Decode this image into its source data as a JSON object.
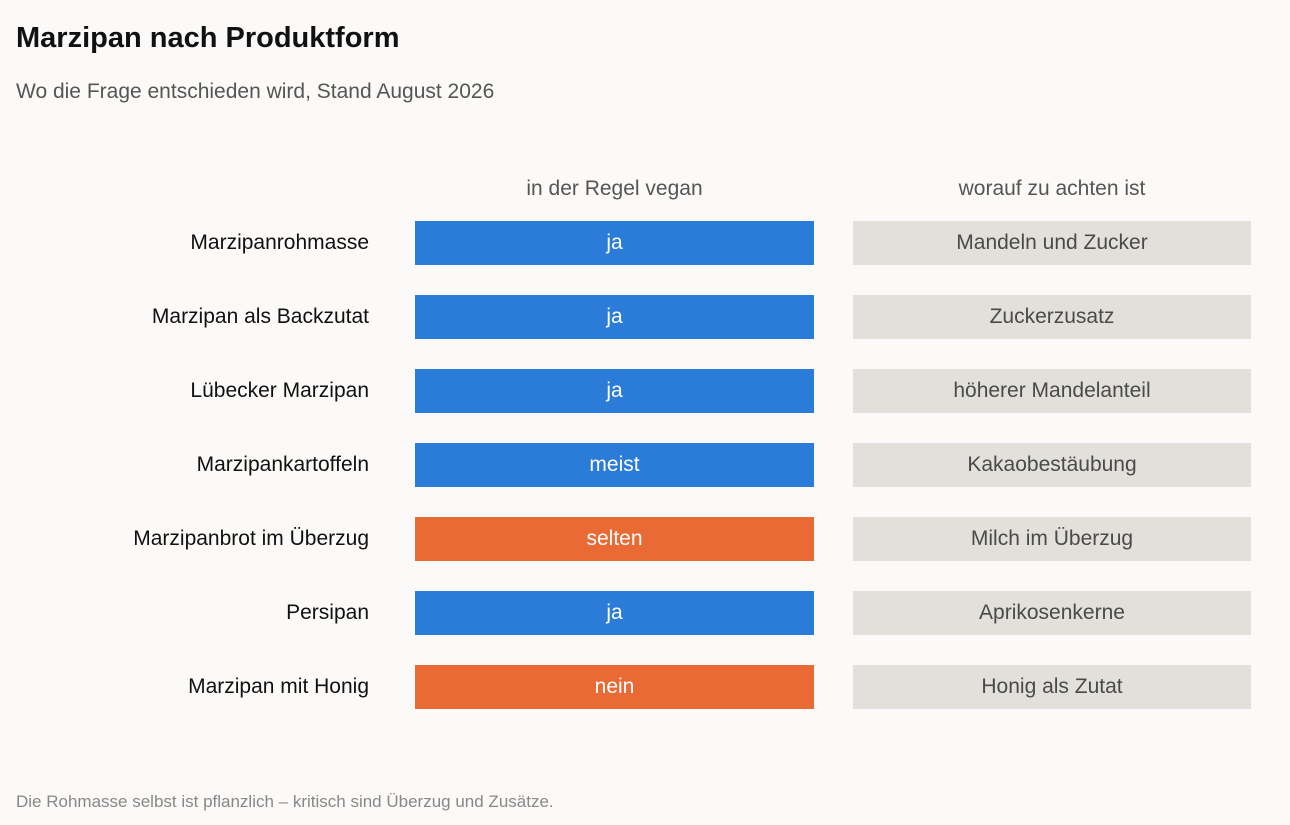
{
  "title": "Marzipan nach Produktform",
  "subtitle": "Wo die Frage entschieden wird, Stand August 2026",
  "footnote": "Die Rohmasse selbst ist pflanzlich – kritisch sind Überzug und Zusätze.",
  "colors": {
    "positive": "#2b7bd8",
    "negative": "#ea6a35",
    "note_background": "#e2e0da"
  },
  "chart_data": {
    "type": "table",
    "columns": [
      "in der Regel vegan",
      "worauf zu achten ist"
    ],
    "rows": [
      {
        "label": "Marzipanrohmasse",
        "status": "ja",
        "status_type": "positive",
        "note": "Mandeln und Zucker"
      },
      {
        "label": "Marzipan als Backzutat",
        "status": "ja",
        "status_type": "positive",
        "note": "Zuckerzusatz"
      },
      {
        "label": "Lübecker Marzipan",
        "status": "ja",
        "status_type": "positive",
        "note": "höherer Mandelanteil"
      },
      {
        "label": "Marzipankartoffeln",
        "status": "meist",
        "status_type": "positive",
        "note": "Kakaobestäubung"
      },
      {
        "label": "Marzipanbrot im Überzug",
        "status": "selten",
        "status_type": "negative",
        "note": "Milch im Überzug"
      },
      {
        "label": "Persipan",
        "status": "ja",
        "status_type": "positive",
        "note": "Aprikosenkerne"
      },
      {
        "label": "Marzipan mit Honig",
        "status": "nein",
        "status_type": "negative",
        "note": "Honig als Zutat"
      }
    ]
  }
}
